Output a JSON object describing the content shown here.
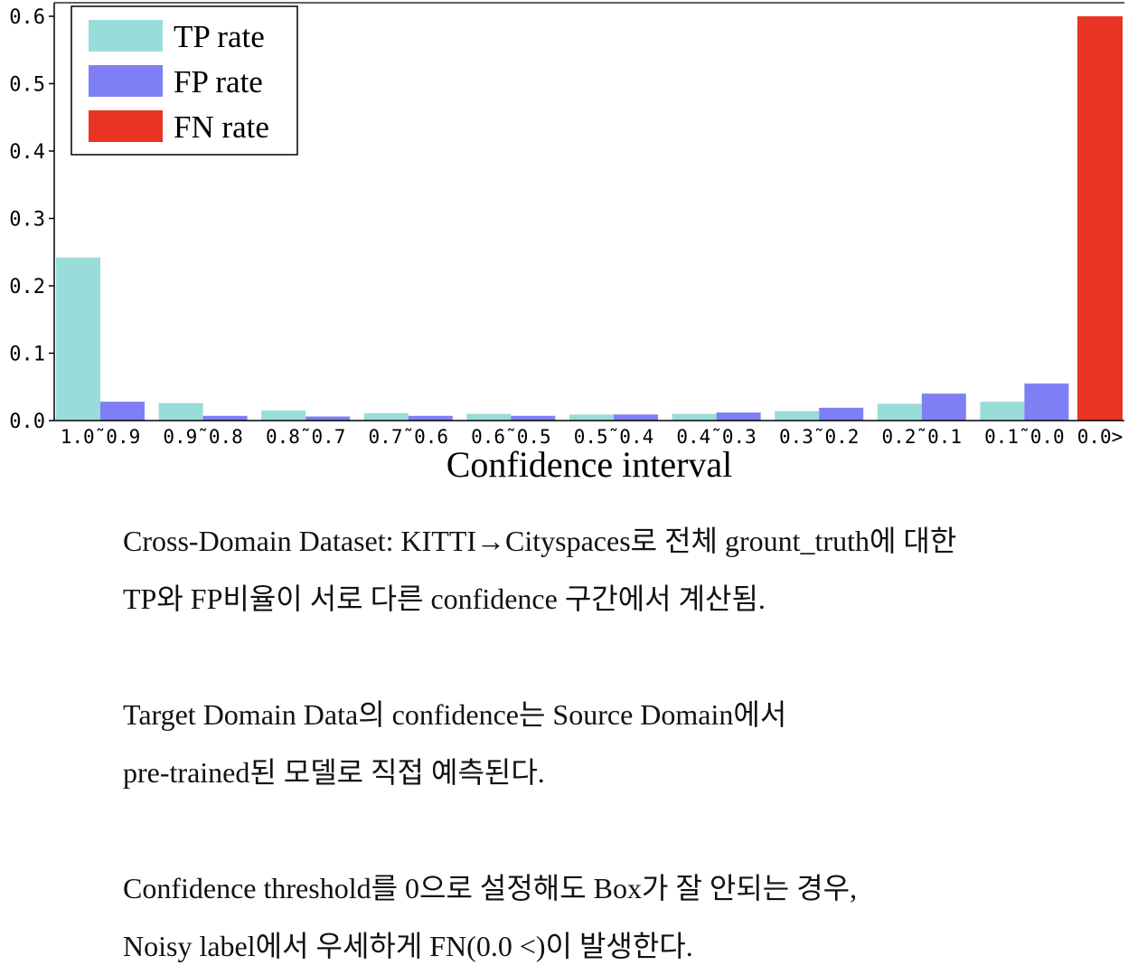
{
  "chart_data": {
    "type": "bar",
    "xlabel": "Confidence interval",
    "ylabel": "",
    "ylim": [
      0,
      0.6
    ],
    "yticks": [
      "0.0",
      "0.1",
      "0.2",
      "0.3",
      "0.4",
      "0.5",
      "0.6"
    ],
    "categories": [
      "1.0˜0.9",
      "0.9˜0.8",
      "0.8˜0.7",
      "0.7˜0.6",
      "0.6˜0.5",
      "0.5˜0.4",
      "0.4˜0.3",
      "0.3˜0.2",
      "0.2˜0.1",
      "0.1˜0.0",
      "0.0>"
    ],
    "series": [
      {
        "name": "TP rate",
        "color": "#99ddda",
        "values": [
          0.242,
          0.026,
          0.015,
          0.011,
          0.01,
          0.009,
          0.01,
          0.014,
          0.025,
          0.028,
          0.0
        ]
      },
      {
        "name": "FP rate",
        "color": "#7f7ff5",
        "values": [
          0.028,
          0.007,
          0.006,
          0.007,
          0.007,
          0.009,
          0.012,
          0.019,
          0.04,
          0.055,
          0.0
        ]
      },
      {
        "name": "FN rate",
        "color": "#e93323",
        "values": [
          0,
          0,
          0,
          0,
          0,
          0,
          0,
          0,
          0,
          0,
          0.6
        ]
      }
    ],
    "legend_position": "top-left",
    "grid": false
  },
  "notes": {
    "line1": "Cross-Domain Dataset: KITTI→Cityspaces로 전체 grount_truth에 대한",
    "line2": "TP와 FP비율이 서로 다른 confidence 구간에서 계산됨.",
    "line3": "Target Domain Data의 confidence는 Source Domain에서",
    "line4": "pre-trained된 모델로 직접 예측된다.",
    "line5": "Confidence threshold를 0으로 설정해도 Box가 잘 안되는 경우,",
    "line6": "Noisy label에서 우세하게 FN(0.0 <)이 발생한다."
  }
}
